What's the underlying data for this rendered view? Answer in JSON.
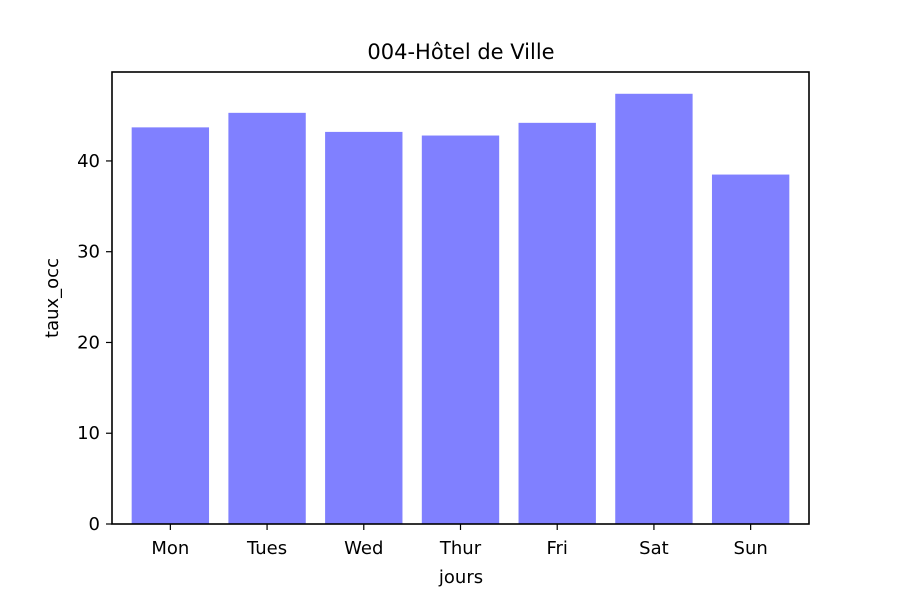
{
  "chart_data": {
    "type": "bar",
    "title": "004-Hôtel de Ville",
    "xlabel": "jours",
    "ylabel": "taux_occ",
    "categories": [
      "Mon",
      "Tues",
      "Wed",
      "Thur",
      "Fri",
      "Sat",
      "Sun"
    ],
    "values": [
      43.7,
      45.3,
      43.2,
      42.8,
      44.2,
      47.4,
      38.5
    ],
    "ylim": [
      0,
      49.8
    ],
    "yticks": [
      0,
      10,
      20,
      30,
      40
    ],
    "grid": false,
    "bar_color": "#8080ff"
  }
}
